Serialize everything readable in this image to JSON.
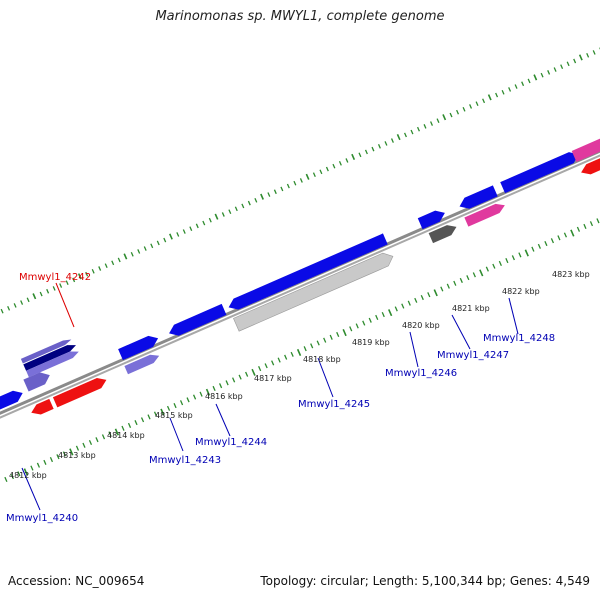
{
  "title": "Marinomonas sp. MWYL1, complete genome",
  "footer": {
    "accession": "Accession: NC_009654",
    "summary": "Topology: circular; Length: 5,100,344 bp; Genes: 4,549"
  },
  "colors": {
    "ring": "#888888",
    "tick": "#2e8b2e",
    "forward_gene": "#0a0ae6",
    "label_default": "#0000b4",
    "label_highlight": "#dd0000"
  },
  "scale_labels": [
    "4812 kbp",
    "4813 kbp",
    "4814 kbp",
    "4815 kbp",
    "4816 kbp",
    "4817 kbp",
    "4818 kbp",
    "4819 kbp",
    "4820 kbp",
    "4821 kbp",
    "4822 kbp",
    "4823 kbp"
  ],
  "gene_labels": [
    {
      "name": "Mmwyl1_4242",
      "highlight": true
    },
    {
      "name": "Mmwyl1_4240",
      "highlight": false
    },
    {
      "name": "Mmwyl1_4243",
      "highlight": false
    },
    {
      "name": "Mmwyl1_4244",
      "highlight": false
    },
    {
      "name": "Mmwyl1_4245",
      "highlight": false
    },
    {
      "name": "Mmwyl1_4246",
      "highlight": false
    },
    {
      "name": "Mmwyl1_4247",
      "highlight": false
    },
    {
      "name": "Mmwyl1_4248",
      "highlight": false
    }
  ]
}
